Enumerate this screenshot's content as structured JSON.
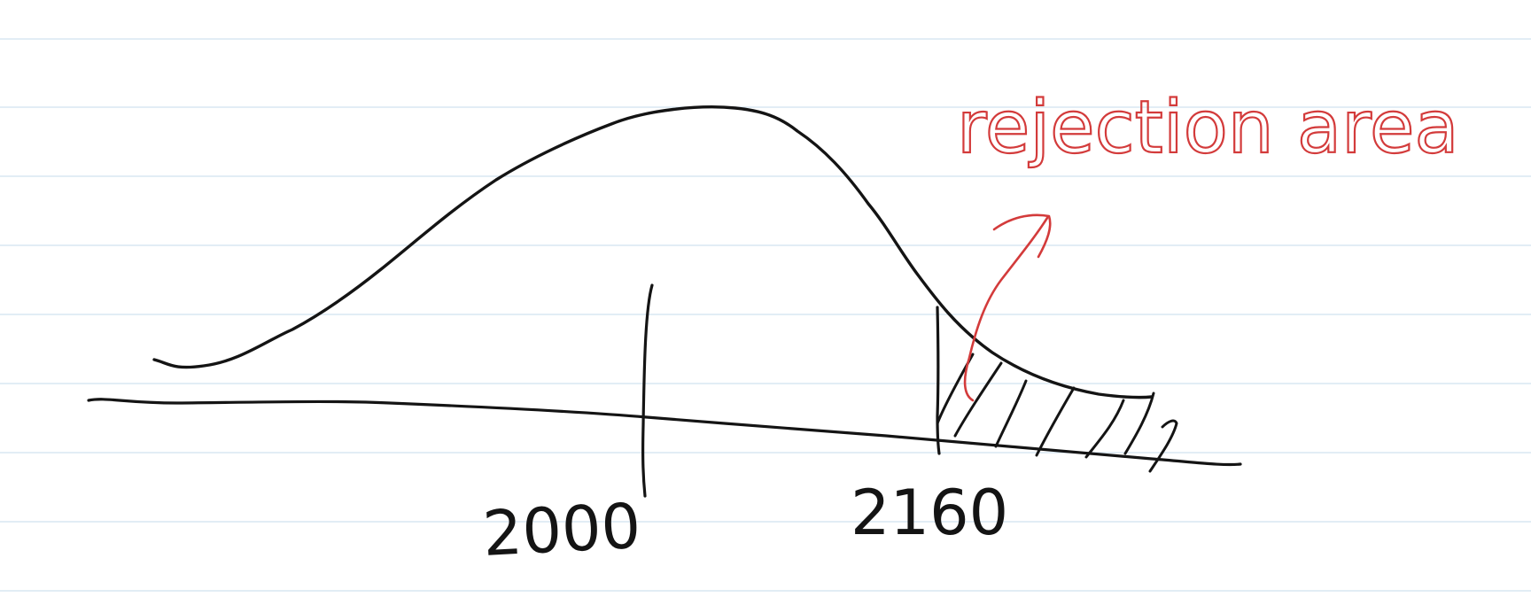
{
  "labels": {
    "mean_value": "2000",
    "critical_value": "2160",
    "rejection_label": "rejection area"
  },
  "colors": {
    "paper": "#ffffff",
    "rule_line": "#d9e7f2",
    "ink": "#141414",
    "annotation": "#d33b3b"
  }
}
